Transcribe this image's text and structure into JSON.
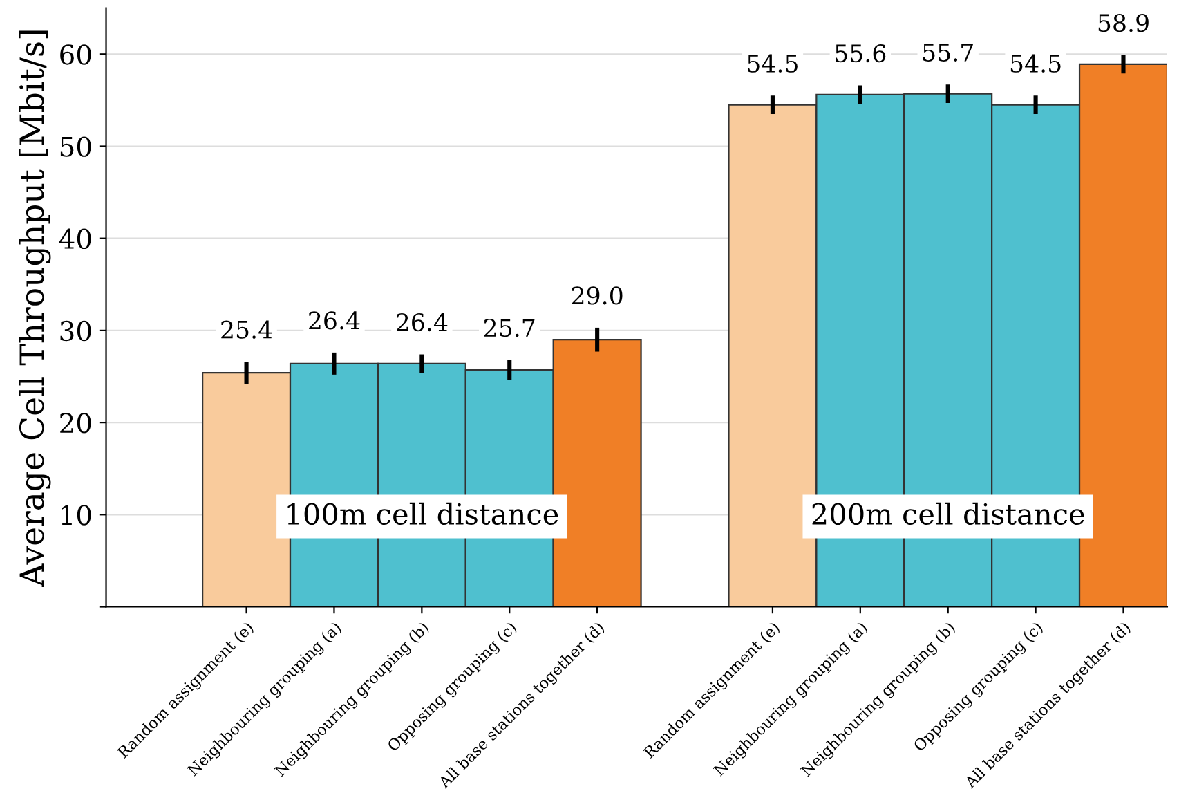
{
  "chart_data": {
    "type": "bar",
    "ylabel": "Average Cell Throughput [Mbit/s]",
    "categories": [
      "Random assignment (e)",
      "Neighbouring grouping (a)",
      "Neighbouring grouping (b)",
      "Opposing grouping (c)",
      "All base stations together (d)",
      null,
      "Random assignment (e)",
      "Neighbouring grouping (a)",
      "Neighbouring grouping (b)",
      "Opposing grouping (c)",
      "All base stations together (d)"
    ],
    "values": [
      25.4,
      26.4,
      26.4,
      25.7,
      29.0,
      null,
      54.5,
      55.6,
      55.7,
      54.5,
      58.9
    ],
    "errors": [
      1.2,
      1.2,
      1.0,
      1.1,
      1.3,
      null,
      1.0,
      1.0,
      1.0,
      1.0,
      1.0
    ],
    "value_labels": [
      "25.4",
      "26.4",
      "26.4",
      "25.7",
      "29.0",
      null,
      "54.5",
      "55.6",
      "55.7",
      "54.5",
      "58.9"
    ],
    "colors": [
      "#f9cb9c",
      "#4fc0cf",
      "#4fc0cf",
      "#4fc0cf",
      "#f07f26",
      null,
      "#f9cb9c",
      "#4fc0cf",
      "#4fc0cf",
      "#4fc0cf",
      "#f07f26"
    ],
    "annotations": [
      "100m cell distance",
      "200m cell distance"
    ],
    "ylim": [
      0,
      65
    ],
    "yticks": [
      {
        "value": 0,
        "label": null
      },
      10,
      20,
      30,
      40,
      50,
      60
    ],
    "grid": "y",
    "legend": false
  }
}
